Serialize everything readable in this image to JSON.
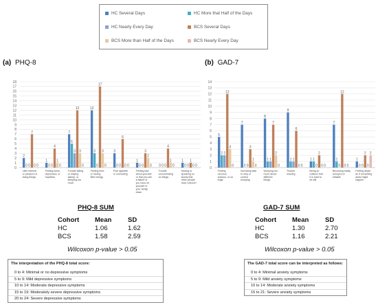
{
  "legend": [
    {
      "label": "HC Several Days",
      "color": "#4f81bd"
    },
    {
      "label": "HC More that Half of the Days",
      "color": "#4bacc6"
    },
    {
      "label": "HC Nearly Every Day",
      "color": "#8aa4cf"
    },
    {
      "label": "BCS Several Days",
      "color": "#c0805a"
    },
    {
      "label": "BCS More than Half of the Days",
      "color": "#e8c9a0"
    },
    {
      "label": "BCS Nearly Every Day",
      "color": "#e6b8b0"
    }
  ],
  "panels": {
    "a": {
      "letter": "(a)",
      "name": "PHQ-8"
    },
    "b": {
      "letter": "(b)",
      "name": "GAD-7"
    }
  },
  "chart_data": [
    {
      "type": "bar",
      "ylim": [
        0,
        18
      ],
      "yticks": [
        0,
        1,
        2,
        3,
        4,
        5,
        6,
        7,
        8,
        9,
        10,
        11,
        12,
        13,
        14,
        15,
        16,
        17,
        18
      ],
      "categories": [
        "Little interest or pleasure in doing things",
        "Feeling down, depressed, or hopeless",
        "Trouble falling or staying asleep, or sleeping too much",
        "Feeling tired or having little energy",
        "Poor appetite or overeating",
        "Feeling bad about yourself- or that you are a failure or you have let yourself or your family down",
        "Trouble concentrating on things",
        "Moving or speaking so slowly that other people have noticed?"
      ],
      "series": [
        {
          "name": "HC Several Days",
          "values": [
            2,
            1,
            7,
            12,
            3,
            1,
            0,
            1
          ]
        },
        {
          "name": "HC More that Half of the Days",
          "values": [
            0,
            0,
            5,
            3,
            0,
            0,
            0,
            0
          ]
        },
        {
          "name": "HC Nearly Every Day",
          "values": [
            0,
            0,
            3,
            0,
            0,
            0,
            0,
            0
          ]
        },
        {
          "name": "BCS Several Days",
          "values": [
            7,
            4,
            12,
            17,
            6,
            3,
            4,
            1
          ]
        },
        {
          "name": "BCS More than Half of the Days",
          "values": [
            0,
            1,
            3,
            3,
            0,
            2,
            1,
            0
          ]
        },
        {
          "name": "BCS Nearly Every Day",
          "values": [
            0,
            0,
            0,
            0,
            0,
            0,
            0,
            0
          ]
        }
      ]
    },
    {
      "type": "bar",
      "ylim": [
        0,
        14
      ],
      "yticks": [
        0,
        1,
        2,
        3,
        4,
        5,
        6,
        7,
        8,
        9,
        10,
        11,
        12,
        13,
        14
      ],
      "categories": [
        "Feeling nervous, anxious, or on edge",
        "Not being able to stop or control worrying",
        "Worrying too much about different things",
        "Trouble relaxing",
        "Being so restless that it is hard to sit still",
        "Becoming easily annoyed or irritable",
        "Feeling afraid as if something awful might happen"
      ],
      "series": [
        {
          "name": "HC Several Days",
          "values": [
            5,
            7,
            8,
            9,
            1,
            7,
            1
          ]
        },
        {
          "name": "HC More that Half of the Days",
          "values": [
            2,
            0,
            1,
            1,
            1,
            1,
            0
          ]
        },
        {
          "name": "HC Nearly Every Day",
          "values": [
            2,
            0,
            1,
            1,
            0,
            0,
            0
          ]
        },
        {
          "name": "BCS Several Days",
          "values": [
            12,
            3,
            7,
            6,
            2,
            12,
            2
          ]
        },
        {
          "name": "BCS More than Half of the Days",
          "values": [
            3,
            1,
            2,
            0,
            0,
            0,
            0
          ]
        },
        {
          "name": "BCS Nearly Every Day",
          "values": [
            0,
            0,
            0,
            0,
            0,
            0,
            2
          ]
        }
      ]
    }
  ],
  "phq_sum": {
    "title": "PHQ-8 SUM",
    "headers": [
      "Cohort",
      "Mean",
      "SD"
    ],
    "rows": [
      [
        "HC",
        "1.06",
        "1.62"
      ],
      [
        "BCS",
        "1.58",
        "2.59"
      ]
    ],
    "pvalue": "Wilcoxon p-value > 0.05",
    "interp_title": "The interpretation of the PHQ-8 total score:",
    "interp": [
      "0 to 4: Minimal or no depressive symptoms",
      "5 to 9: Mild depressive symptoms",
      "10 to 14: Moderate depressive symptoms",
      "15 to 19: Moderately severe depressive symptoms",
      "20 to 24: Severe depressive symptoms"
    ]
  },
  "gad_sum": {
    "title": "GAD-7 SUM",
    "headers": [
      "Cohort",
      "Mean",
      "SD"
    ],
    "rows": [
      [
        "HC",
        "1.30",
        "2.70"
      ],
      [
        "BCS",
        "1.16",
        "2.21"
      ]
    ],
    "pvalue": "Wilcoxon p-value > 0.05",
    "interp_title": "The GAD-7 total score can be interpreted as follows:",
    "interp": [
      "0 to 4: Minimal anxiety symptoms",
      "5 to 9: Mild anxiety symptoms",
      "10 to 14: Moderate anxiety symptoms",
      "15 to 21: Severe anxiety symptoms"
    ]
  }
}
